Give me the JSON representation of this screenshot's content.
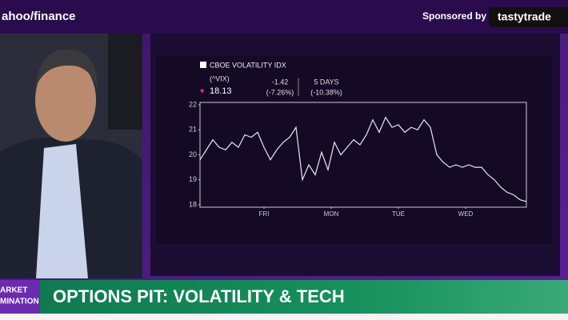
{
  "header": {
    "logo": "ahoo/finance",
    "sponsor_label": "Sponsored by",
    "sponsor": "tastytrade"
  },
  "banner": {
    "title": "OPTIONS PIT: VOLATILITY & TECH",
    "tag_line1": "ARKET",
    "tag_line2": "MINATION"
  },
  "quote": {
    "name": "CBOE VOLATILITY IDX",
    "symbol": "(^VIX)",
    "price": "18.13",
    "change": "-1.42",
    "change_pct": "(-7.26%)",
    "period": "5 DAYS",
    "period_pct": "(-10.38%)"
  },
  "chart_data": {
    "type": "line",
    "color": "#e8e8ee",
    "x": [
      0,
      1,
      2,
      3,
      4,
      5,
      6,
      7,
      8,
      9,
      10,
      11,
      12,
      13,
      14,
      15,
      16,
      17,
      18,
      19,
      20,
      21,
      22,
      23,
      24,
      25,
      26,
      27,
      28,
      29,
      30,
      31,
      32,
      33,
      34,
      35,
      36,
      37,
      38,
      39,
      40,
      41,
      42,
      43,
      44,
      45,
      46,
      47,
      48,
      49,
      50,
      51
    ],
    "values": [
      19.8,
      20.2,
      20.6,
      20.3,
      20.2,
      20.5,
      20.3,
      20.8,
      20.7,
      20.9,
      20.3,
      19.8,
      20.2,
      20.5,
      20.7,
      21.1,
      19.0,
      19.6,
      19.2,
      20.1,
      19.4,
      20.5,
      20.0,
      20.3,
      20.6,
      20.4,
      20.8,
      21.4,
      20.9,
      21.5,
      21.1,
      21.2,
      20.9,
      21.1,
      21.0,
      21.4,
      21.1,
      20.0,
      19.7,
      19.5,
      19.6,
      19.5,
      19.6,
      19.5,
      19.5,
      19.2,
      19.0,
      18.7,
      18.5,
      18.4,
      18.2,
      18.13
    ],
    "xlim": [
      0,
      51
    ],
    "xticks": [
      {
        "value": 10,
        "label": "FRI"
      },
      {
        "value": 20.5,
        "label": "MON"
      },
      {
        "value": 31,
        "label": "TUE"
      },
      {
        "value": 41.5,
        "label": "WED"
      }
    ],
    "ylim": [
      18,
      22
    ],
    "yticks": [
      18,
      19,
      20,
      21,
      22
    ]
  }
}
